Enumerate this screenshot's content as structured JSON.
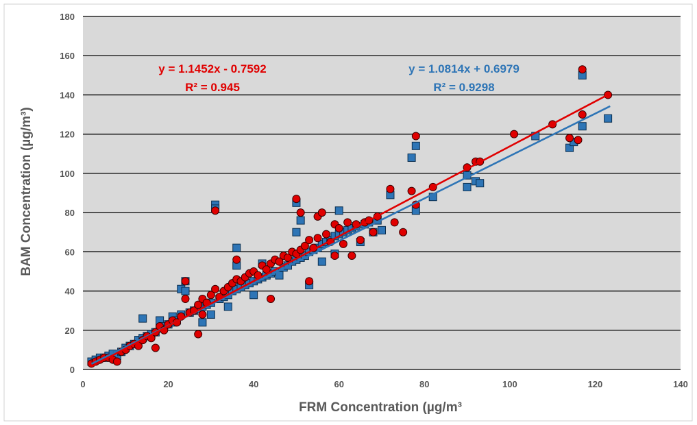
{
  "chart_data": {
    "type": "scatter",
    "xlabel": "FRM Concentration (µg/m³",
    "ylabel": "BAM Concentration (µg/m³)",
    "xlim": [
      0,
      140
    ],
    "ylim": [
      0,
      180
    ],
    "xticks": [
      "0",
      "20",
      "40",
      "60",
      "80",
      "100",
      "120",
      "140"
    ],
    "yticks": [
      "0",
      "20",
      "40",
      "60",
      "80",
      "100",
      "120",
      "140",
      "160",
      "180"
    ],
    "grid": "horizontal",
    "background": "#d9d9d9",
    "series": [
      {
        "marker": "square",
        "color": "#2e75b6",
        "trendline": {
          "slope": 1.0814,
          "intercept": 0.6979,
          "x_range": [
            2,
            123.5
          ]
        },
        "equation": "y = 1.0814x + 0.6979",
        "r2": "R² = 0.9298",
        "points": [
          [
            2,
            4
          ],
          [
            3,
            5
          ],
          [
            4,
            6
          ],
          [
            5,
            6
          ],
          [
            6,
            7
          ],
          [
            7,
            8
          ],
          [
            8,
            7
          ],
          [
            9,
            9
          ],
          [
            10,
            11
          ],
          [
            11,
            12
          ],
          [
            12,
            13
          ],
          [
            13,
            15
          ],
          [
            14,
            16
          ],
          [
            14,
            26
          ],
          [
            15,
            17
          ],
          [
            16,
            18
          ],
          [
            17,
            19
          ],
          [
            18,
            21
          ],
          [
            18,
            25
          ],
          [
            19,
            22
          ],
          [
            20,
            23
          ],
          [
            21,
            24
          ],
          [
            21,
            27
          ],
          [
            22,
            25
          ],
          [
            23,
            28
          ],
          [
            23,
            41
          ],
          [
            24,
            40
          ],
          [
            24,
            45
          ],
          [
            25,
            29
          ],
          [
            26,
            30
          ],
          [
            27,
            31
          ],
          [
            28,
            32
          ],
          [
            28,
            24
          ],
          [
            29,
            33
          ],
          [
            30,
            34
          ],
          [
            30,
            28
          ],
          [
            31,
            84
          ],
          [
            31,
            82
          ],
          [
            32,
            36
          ],
          [
            33,
            37
          ],
          [
            34,
            38
          ],
          [
            34,
            32
          ],
          [
            35,
            40
          ],
          [
            36,
            62
          ],
          [
            36,
            53
          ],
          [
            36,
            41
          ],
          [
            37,
            42
          ],
          [
            38,
            43
          ],
          [
            39,
            44
          ],
          [
            40,
            45
          ],
          [
            40,
            38
          ],
          [
            41,
            46
          ],
          [
            42,
            54
          ],
          [
            42,
            47
          ],
          [
            43,
            48
          ],
          [
            44,
            49
          ],
          [
            45,
            50
          ],
          [
            46,
            48
          ],
          [
            47,
            52
          ],
          [
            48,
            53
          ],
          [
            49,
            55
          ],
          [
            50,
            85
          ],
          [
            50,
            70
          ],
          [
            50,
            56
          ],
          [
            51,
            76
          ],
          [
            51,
            57
          ],
          [
            52,
            58
          ],
          [
            53,
            60
          ],
          [
            53,
            43
          ],
          [
            54,
            61
          ],
          [
            55,
            62
          ],
          [
            56,
            64
          ],
          [
            56,
            55
          ],
          [
            57,
            65
          ],
          [
            58,
            66
          ],
          [
            59,
            68
          ],
          [
            59,
            59
          ],
          [
            60,
            81
          ],
          [
            60,
            69
          ],
          [
            61,
            70
          ],
          [
            62,
            71
          ],
          [
            63,
            72
          ],
          [
            64,
            73
          ],
          [
            65,
            65
          ],
          [
            66,
            74
          ],
          [
            67,
            75
          ],
          [
            68,
            70
          ],
          [
            69,
            76
          ],
          [
            70,
            71
          ],
          [
            72,
            89
          ],
          [
            77,
            108
          ],
          [
            78,
            114
          ],
          [
            78,
            81
          ],
          [
            82,
            88
          ],
          [
            90,
            93
          ],
          [
            90,
            99
          ],
          [
            92,
            96
          ],
          [
            93,
            95
          ],
          [
            106,
            119
          ],
          [
            114,
            113
          ],
          [
            115,
            116
          ],
          [
            117,
            150
          ],
          [
            117,
            124
          ],
          [
            123,
            128
          ]
        ]
      },
      {
        "marker": "circle",
        "color": "#e00000",
        "trendline": {
          "slope": 1.1452,
          "intercept": -0.7592,
          "x_range": [
            2,
            123.5
          ]
        },
        "equation": "y = 1.1452x - 0.7592",
        "r2": "R² = 0.945",
        "points": [
          [
            2,
            3
          ],
          [
            3,
            4
          ],
          [
            4,
            5
          ],
          [
            5,
            6
          ],
          [
            6,
            6
          ],
          [
            7,
            5
          ],
          [
            8,
            4
          ],
          [
            9,
            9
          ],
          [
            10,
            10
          ],
          [
            11,
            12
          ],
          [
            12,
            13
          ],
          [
            13,
            12
          ],
          [
            14,
            15
          ],
          [
            15,
            17
          ],
          [
            16,
            16
          ],
          [
            17,
            19
          ],
          [
            17,
            11
          ],
          [
            18,
            22
          ],
          [
            19,
            20
          ],
          [
            20,
            23
          ],
          [
            21,
            25
          ],
          [
            22,
            24
          ],
          [
            23,
            27
          ],
          [
            24,
            36
          ],
          [
            24,
            45
          ],
          [
            25,
            29
          ],
          [
            26,
            30
          ],
          [
            27,
            33
          ],
          [
            27,
            18
          ],
          [
            28,
            36
          ],
          [
            28,
            28
          ],
          [
            29,
            34
          ],
          [
            30,
            38
          ],
          [
            31,
            81
          ],
          [
            31,
            41
          ],
          [
            32,
            37
          ],
          [
            33,
            40
          ],
          [
            34,
            42
          ],
          [
            35,
            44
          ],
          [
            36,
            56
          ],
          [
            36,
            46
          ],
          [
            37,
            45
          ],
          [
            38,
            47
          ],
          [
            39,
            49
          ],
          [
            40,
            50
          ],
          [
            41,
            48
          ],
          [
            42,
            53
          ],
          [
            43,
            51
          ],
          [
            44,
            54
          ],
          [
            44,
            36
          ],
          [
            45,
            56
          ],
          [
            46,
            55
          ],
          [
            47,
            58
          ],
          [
            48,
            57
          ],
          [
            49,
            60
          ],
          [
            50,
            87
          ],
          [
            50,
            59
          ],
          [
            51,
            80
          ],
          [
            51,
            61
          ],
          [
            52,
            63
          ],
          [
            53,
            66
          ],
          [
            53,
            45
          ],
          [
            54,
            62
          ],
          [
            55,
            67
          ],
          [
            55,
            78
          ],
          [
            56,
            80
          ],
          [
            57,
            69
          ],
          [
            58,
            65
          ],
          [
            59,
            74
          ],
          [
            59,
            58
          ],
          [
            60,
            72
          ],
          [
            61,
            64
          ],
          [
            62,
            75
          ],
          [
            63,
            58
          ],
          [
            64,
            74
          ],
          [
            65,
            66
          ],
          [
            66,
            75
          ],
          [
            67,
            76
          ],
          [
            68,
            70
          ],
          [
            69,
            78
          ],
          [
            72,
            92
          ],
          [
            73,
            75
          ],
          [
            75,
            70
          ],
          [
            77,
            91
          ],
          [
            78,
            119
          ],
          [
            78,
            84
          ],
          [
            82,
            93
          ],
          [
            90,
            103
          ],
          [
            92,
            106
          ],
          [
            93,
            106
          ],
          [
            101,
            120
          ],
          [
            110,
            125
          ],
          [
            114,
            118
          ],
          [
            116,
            117
          ],
          [
            117,
            153
          ],
          [
            117,
            130
          ],
          [
            123,
            140
          ]
        ]
      }
    ]
  }
}
